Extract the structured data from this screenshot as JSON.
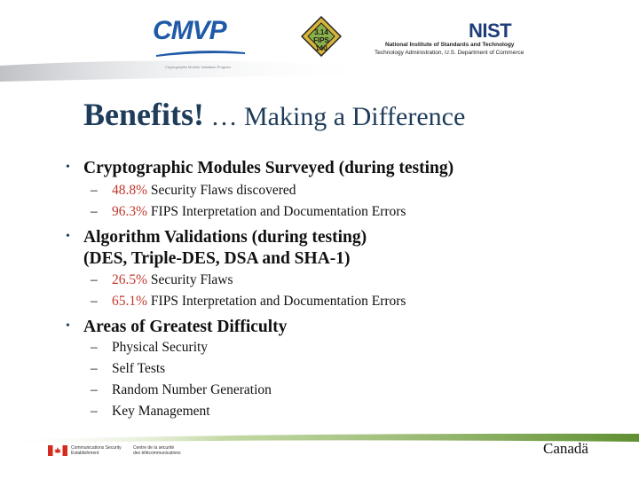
{
  "header": {
    "cmvp_logo": "CMVP",
    "cmvp_tagline": "Cryptographic Module Validation Program",
    "seal_text": [
      "3.14",
      "FIPS",
      "140"
    ],
    "nist_logo": "NIST",
    "nist_name": "National Institute of Standards and Technology",
    "nist_admin": "Technology Administration, U.S. Department of Commerce"
  },
  "title": {
    "main": "Benefits!",
    "sub": " … Making a Difference"
  },
  "bullets": [
    {
      "text": "Cryptographic Modules Surveyed (during testing)",
      "items": [
        {
          "pct": "48.8%",
          "text": " Security Flaws discovered"
        },
        {
          "pct": "96.3%",
          "text": " FIPS Interpretation and Documentation Errors"
        }
      ]
    },
    {
      "text": "Algorithm Validations (during testing)",
      "text2": "(DES, Triple-DES, DSA and SHA-1)",
      "items": [
        {
          "pct": "26.5%",
          "text": " Security Flaws"
        },
        {
          "pct": "65.1%",
          "text": " FIPS Interpretation and Documentation Errors"
        }
      ]
    },
    {
      "text": "Areas of Greatest Difficulty",
      "items": [
        {
          "text": "Physical Security"
        },
        {
          "text": "Self Tests"
        },
        {
          "text": "Random Number Generation"
        },
        {
          "text": "Key Management"
        }
      ]
    }
  ],
  "symbols": {
    "bullet": "•",
    "dash": "–"
  },
  "footer": {
    "cse_en_1": "Communications Security",
    "cse_en_2": "Establishment",
    "cse_fr_1": "Centre de la sécurité",
    "cse_fr_2": "des télécommunications",
    "canada": "Canadä"
  },
  "colors": {
    "title": "#1f3c5a",
    "percent": "#c0392b",
    "band": "#6f9a3d"
  }
}
